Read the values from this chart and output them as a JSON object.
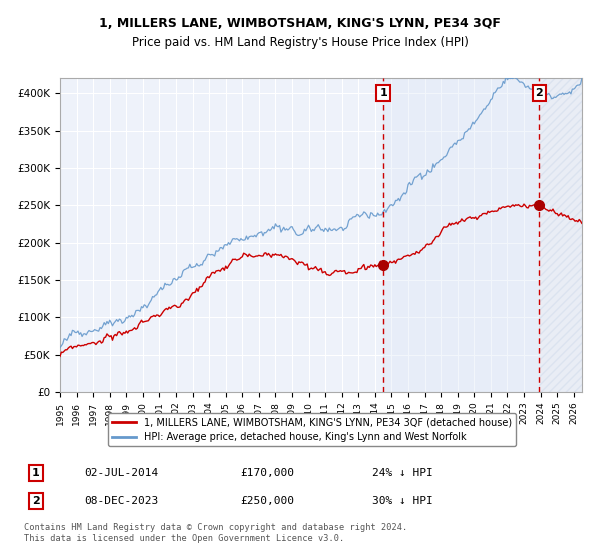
{
  "title": "1, MILLERS LANE, WIMBOTSHAM, KING'S LYNN, PE34 3QF",
  "subtitle": "Price paid vs. HM Land Registry's House Price Index (HPI)",
  "ylim": [
    0,
    420000
  ],
  "yticks": [
    0,
    50000,
    100000,
    150000,
    200000,
    250000,
    300000,
    350000,
    400000
  ],
  "xlim_start": 1995.0,
  "xlim_end": 2026.5,
  "legend_red_label": "1, MILLERS LANE, WIMBOTSHAM, KING'S LYNN, PE34 3QF (detached house)",
  "legend_blue_label": "HPI: Average price, detached house, King's Lynn and West Norfolk",
  "transaction1_label": "1",
  "transaction1_date": "02-JUL-2014",
  "transaction1_price": "£170,000",
  "transaction1_pct": "24% ↓ HPI",
  "transaction1_x": 2014.5,
  "transaction1_red_y": 170000,
  "transaction2_label": "2",
  "transaction2_date": "08-DEC-2023",
  "transaction2_price": "£250,000",
  "transaction2_pct": "30% ↓ HPI",
  "transaction2_x": 2023.92,
  "transaction2_red_y": 250000,
  "footnote": "Contains HM Land Registry data © Crown copyright and database right 2024.\nThis data is licensed under the Open Government Licence v3.0.",
  "background_color": "#eef2fa",
  "shade_color": "#dce6f5",
  "hatch_color": "#c8d4e8",
  "red_line_color": "#cc0000",
  "blue_line_color": "#6699cc",
  "grid_color": "#ffffff",
  "marker_color": "#aa0000"
}
